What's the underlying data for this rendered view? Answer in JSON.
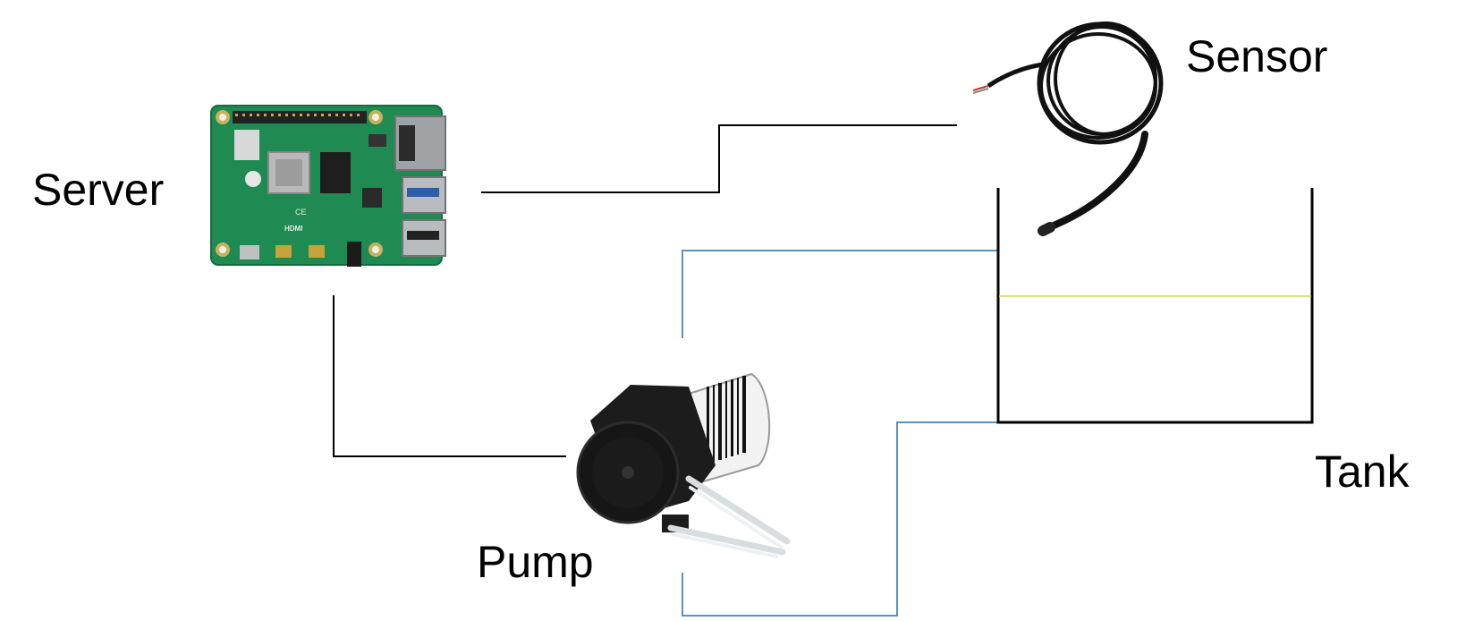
{
  "labels": {
    "server": "Server",
    "sensor": "Sensor",
    "pump": "Pump",
    "tank": "Tank"
  },
  "components": {
    "server": {
      "icon": "raspberry-pi-board-icon"
    },
    "sensor": {
      "icon": "temperature-probe-icon"
    },
    "pump": {
      "icon": "peristaltic-pump-icon"
    },
    "tank": {
      "icon": "open-tank-icon"
    }
  },
  "colors": {
    "signal_wire": "#000000",
    "tube": "#5b8fc9",
    "liquid_level": "#d4d45a",
    "tank_wall": "#000000",
    "board_green": "#1f8a52"
  }
}
